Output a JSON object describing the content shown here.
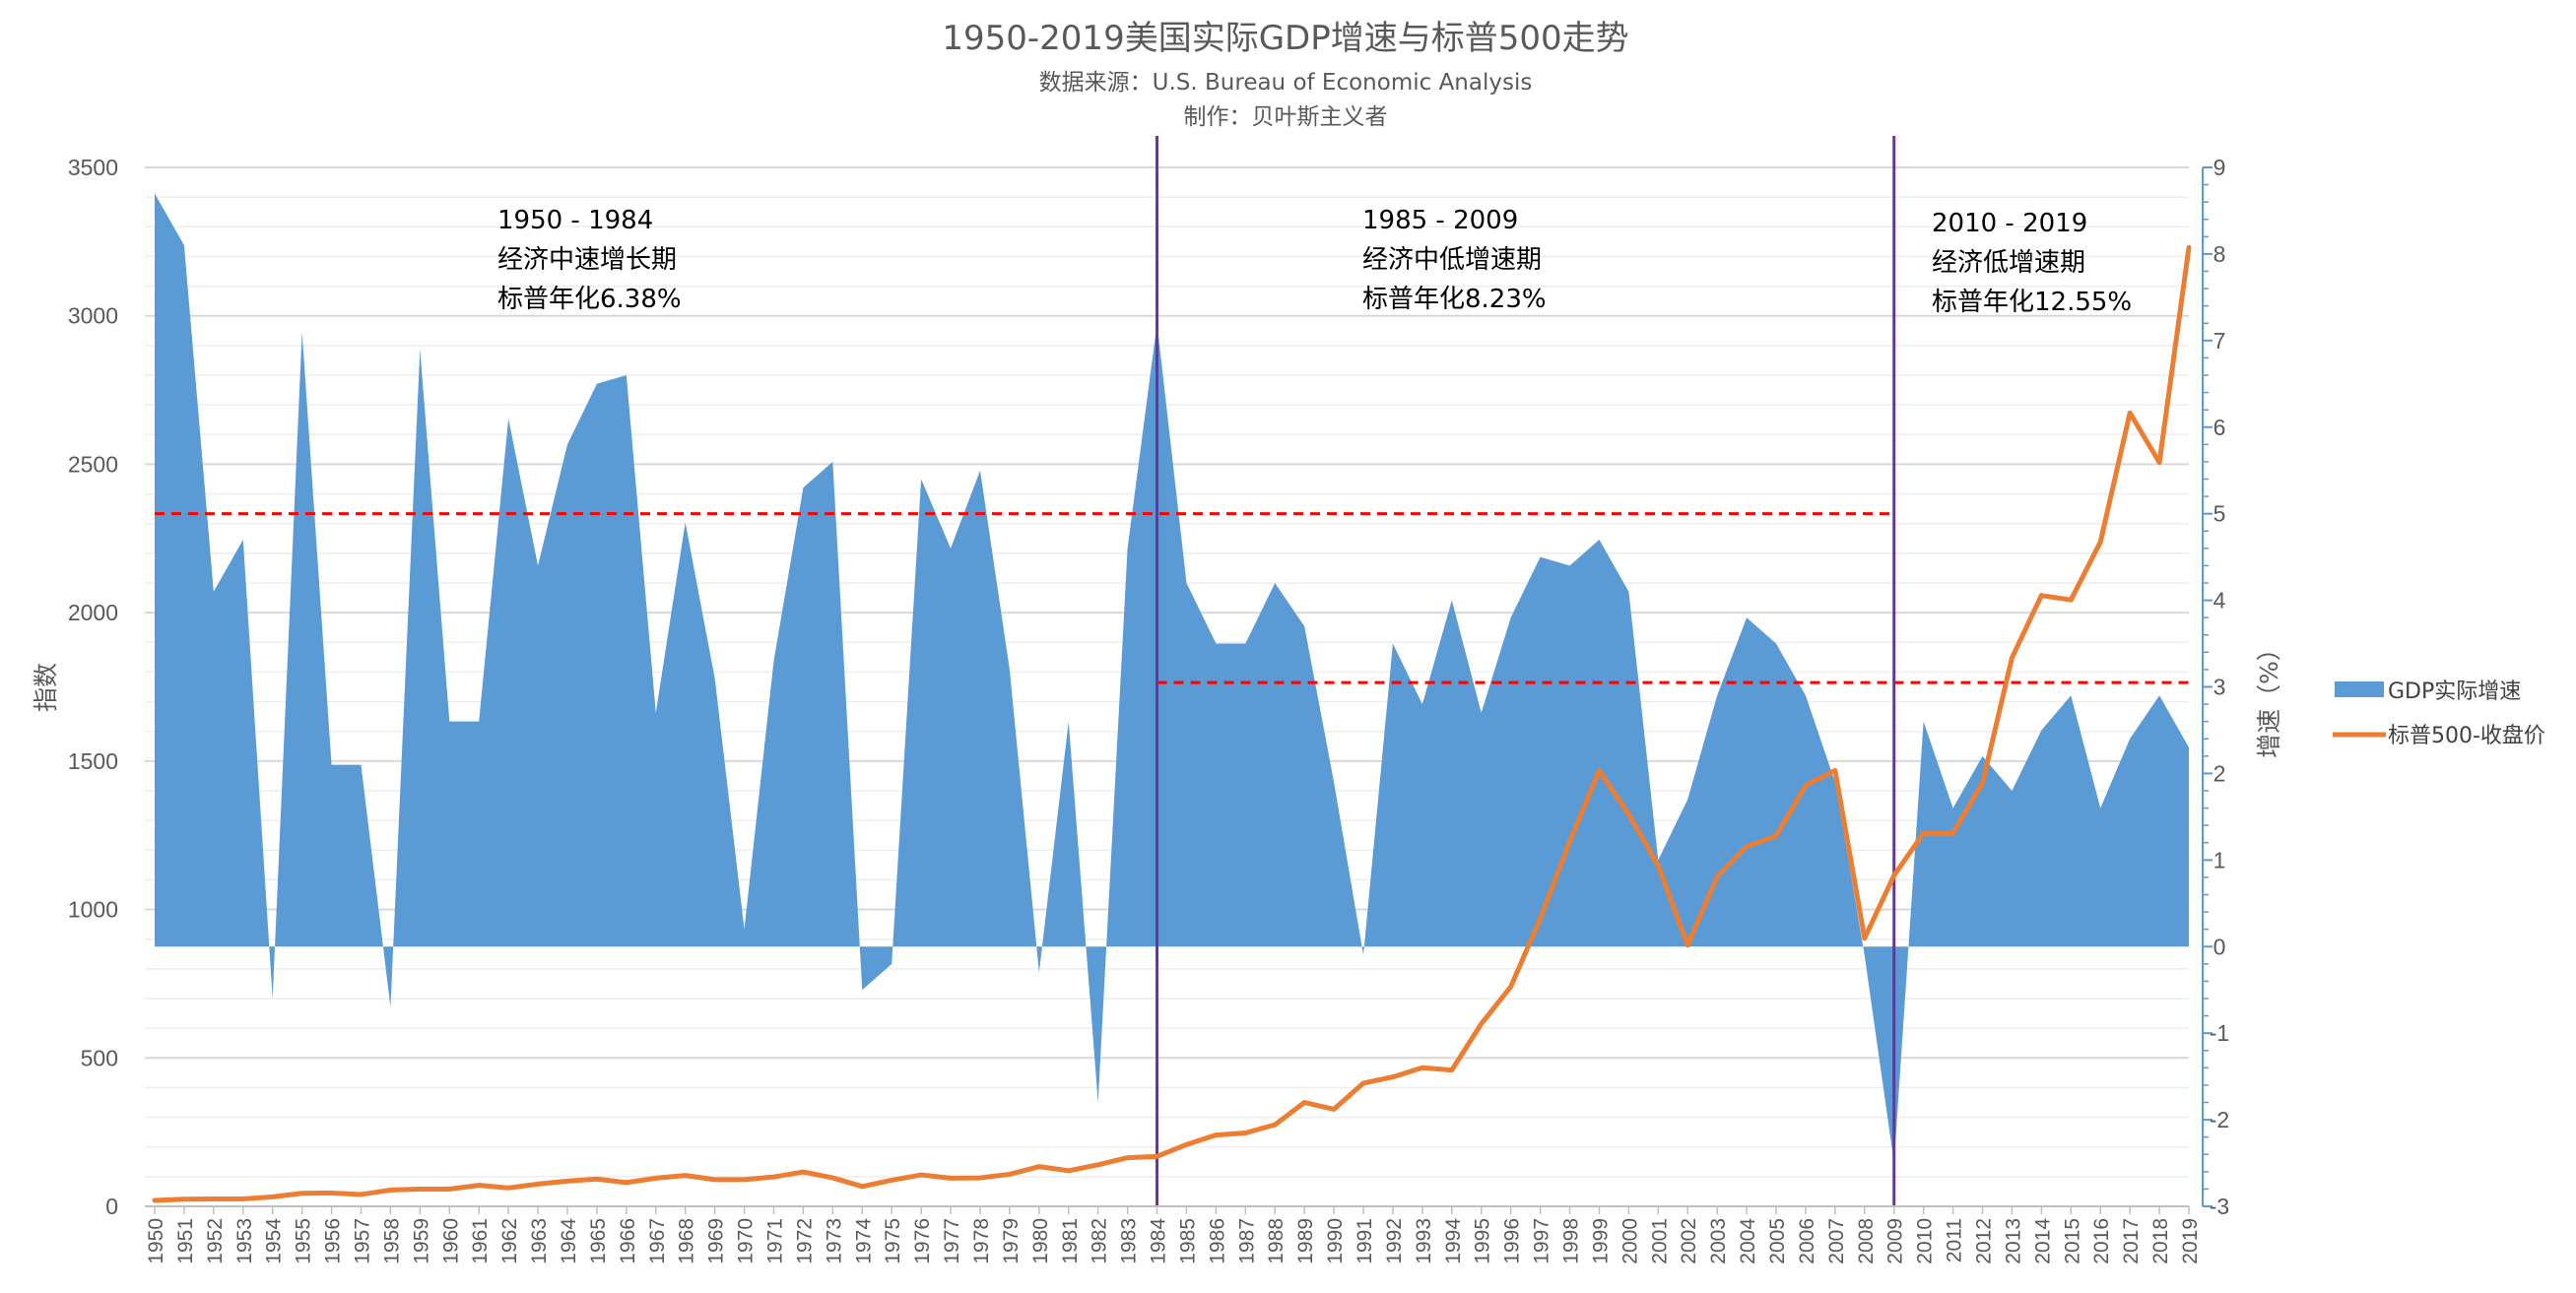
{
  "chart_data": {
    "type": "area+line",
    "title": "1950-2019美国实际GDP增速与标普500走势",
    "subtitle1": "数据来源：U.S. Bureau of Economic Analysis",
    "subtitle2": "制作：贝叶斯主义者",
    "ylabel_left": "指数",
    "ylabel_right": "增速（%）",
    "ylim_left": [
      0,
      3500
    ],
    "ylim_right": [
      -3,
      9
    ],
    "left_ticks": [
      "0",
      "500",
      "1000",
      "1500",
      "2000",
      "2500",
      "3000",
      "3500"
    ],
    "right_ticks": [
      "-3",
      "-2",
      "-1",
      "0",
      "1",
      "2",
      "3",
      "4",
      "5",
      "6",
      "7",
      "8",
      "9"
    ],
    "years": [
      "1950",
      "1951",
      "1952",
      "1953",
      "1954",
      "1955",
      "1956",
      "1957",
      "1958",
      "1959",
      "1960",
      "1961",
      "1962",
      "1963",
      "1964",
      "1965",
      "1966",
      "1967",
      "1968",
      "1969",
      "1970",
      "1971",
      "1972",
      "1973",
      "1974",
      "1975",
      "1976",
      "1977",
      "1978",
      "1979",
      "1980",
      "1981",
      "1982",
      "1983",
      "1984",
      "1985",
      "1986",
      "1987",
      "1988",
      "1989",
      "1990",
      "1991",
      "1992",
      "1993",
      "1994",
      "1995",
      "1996",
      "1997",
      "1998",
      "1999",
      "2000",
      "2001",
      "2002",
      "2003",
      "2004",
      "2005",
      "2006",
      "2007",
      "2008",
      "2009",
      "2010",
      "2011",
      "2012",
      "2013",
      "2014",
      "2015",
      "2016",
      "2017",
      "2018",
      "2019"
    ],
    "series": [
      {
        "name": "GDP实际增速",
        "type": "area",
        "axis": "right",
        "color": "#5b9bd5",
        "values": [
          8.7,
          8.1,
          4.1,
          4.7,
          -0.6,
          7.1,
          2.1,
          2.1,
          -0.7,
          6.9,
          2.6,
          2.6,
          6.1,
          4.4,
          5.8,
          6.5,
          6.6,
          2.7,
          4.9,
          3.1,
          0.2,
          3.3,
          5.3,
          5.6,
          -0.5,
          -0.2,
          5.4,
          4.6,
          5.5,
          3.2,
          -0.3,
          2.6,
          -1.8,
          4.6,
          7.2,
          4.2,
          3.5,
          3.5,
          4.2,
          3.7,
          1.9,
          -0.1,
          3.5,
          2.8,
          4.0,
          2.7,
          3.8,
          4.5,
          4.4,
          4.7,
          4.1,
          1.0,
          1.7,
          2.9,
          3.8,
          3.5,
          2.9,
          1.9,
          -0.1,
          -2.5,
          2.6,
          1.6,
          2.2,
          1.8,
          2.5,
          2.9,
          1.6,
          2.4,
          2.9,
          2.3
        ]
      },
      {
        "name": "标普500-收盘价",
        "type": "line",
        "axis": "left",
        "color": "#ed7d31",
        "values": [
          20,
          24,
          25,
          25,
          32,
          44,
          45,
          40,
          55,
          58,
          58,
          71,
          62,
          75,
          85,
          92,
          80,
          95,
          104,
          90,
          90,
          99,
          116,
          96,
          67,
          88,
          106,
          95,
          96,
          108,
          134,
          120,
          140,
          164,
          168,
          208,
          240,
          247,
          275,
          350,
          327,
          415,
          436,
          467,
          459,
          615,
          740,
          970,
          1229,
          1468,
          1320,
          1148,
          880,
          1111,
          1212,
          1248,
          1418,
          1468,
          903,
          1115,
          1257,
          1257,
          1426,
          1848,
          2058,
          2043,
          2238,
          2673,
          2506,
          3230
        ]
      }
    ],
    "reference_lines": [
      {
        "axis": "right",
        "value": 5.0,
        "from_year": "1950",
        "to_year": "2009",
        "color": "#ff0000"
      },
      {
        "axis": "right",
        "value": 3.05,
        "from_year": "1984",
        "to_year": "2019",
        "color": "#ff0000"
      }
    ],
    "dividers": [
      {
        "year": "1984",
        "color": "#7030a0"
      },
      {
        "year": "2009",
        "color": "#7030a0"
      }
    ],
    "annotations": [
      {
        "lines": [
          "1950 - 1984",
          "经济中速增长期",
          "标普年化6.38%"
        ]
      },
      {
        "lines": [
          "1985 - 2009",
          "经济中低增速期",
          "标普年化8.23%"
        ]
      },
      {
        "lines": [
          "2010 - 2019",
          "经济低增速期",
          "标普年化12.55%"
        ]
      }
    ],
    "legend": [
      {
        "label": "GDP实际增速",
        "kind": "box",
        "color": "#5b9bd5"
      },
      {
        "label": "标普500-收盘价",
        "kind": "line",
        "color": "#ed7d31"
      }
    ],
    "legend_position": "right",
    "gridlines": true
  }
}
